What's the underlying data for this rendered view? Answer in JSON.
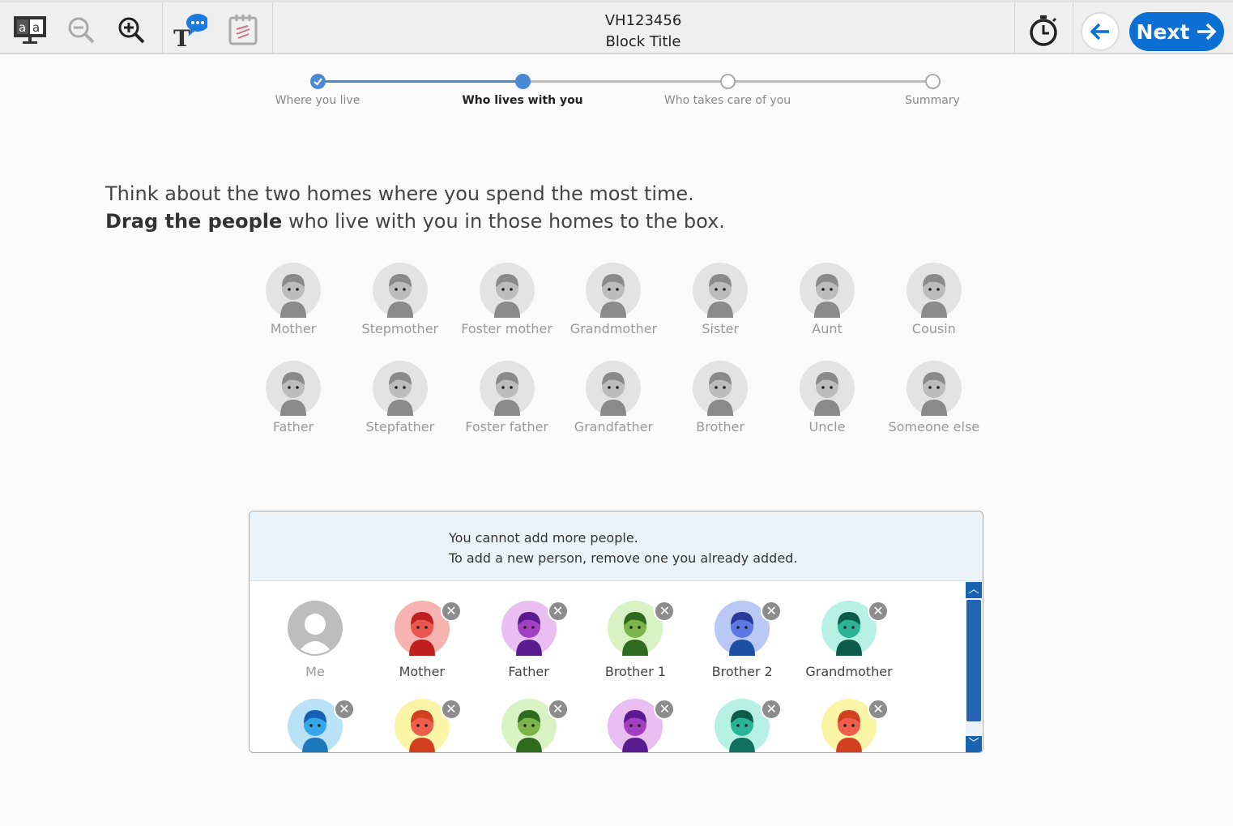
{
  "toolbar": {
    "title_line1": "VH123456",
    "title_line2": "Block Title",
    "next_label": "Next",
    "icons": [
      "text-to-speech-monitor-icon",
      "zoom-out-icon",
      "zoom-in-icon",
      "text-comment-icon",
      "notepad-icon",
      "timer-icon",
      "back-arrow-icon",
      "next-arrow-icon"
    ]
  },
  "stepper": {
    "steps": [
      {
        "label": "Where you live",
        "state": "done"
      },
      {
        "label": "Who lives with you",
        "state": "current"
      },
      {
        "label": "Who takes care of you",
        "state": "todo"
      },
      {
        "label": "Summary",
        "state": "todo"
      }
    ],
    "accent": "#4a89d4"
  },
  "instruction": {
    "line1": "Think about the two homes where you spend the most time.",
    "line2_bold": "Drag the people",
    "line2_rest": " who live with you in those homes to the box."
  },
  "people": [
    {
      "label": "Mother"
    },
    {
      "label": "Stepmother"
    },
    {
      "label": "Foster mother"
    },
    {
      "label": "Grandmother"
    },
    {
      "label": "Sister"
    },
    {
      "label": "Aunt"
    },
    {
      "label": "Cousin"
    },
    {
      "label": "Father"
    },
    {
      "label": "Stepfather"
    },
    {
      "label": "Foster father"
    },
    {
      "label": "Grandfather"
    },
    {
      "label": "Brother"
    },
    {
      "label": "Uncle"
    },
    {
      "label": "Someone else"
    }
  ],
  "box": {
    "message_line1": "You cannot add more people.",
    "message_line2": "To add a new person, remove one you already added.",
    "added": [
      {
        "label": "Me",
        "bg": "#ffffff",
        "skin": "#bdbdbd",
        "hair": "#bdbdbd",
        "shirt": "#bdbdbd",
        "removable": false
      },
      {
        "label": "Mother",
        "bg": "#f6b3b0",
        "skin": "#e8564f",
        "hair": "#c0201d",
        "shirt": "#c0201d",
        "removable": true
      },
      {
        "label": "Father",
        "bg": "#e9bff2",
        "skin": "#a33fc1",
        "hair": "#5a1b8f",
        "shirt": "#5a1b8f",
        "removable": true
      },
      {
        "label": "Brother 1",
        "bg": "#d8f2c4",
        "skin": "#7bb54a",
        "hair": "#2f6b1f",
        "shirt": "#2f6b1f",
        "removable": true
      },
      {
        "label": "Brother 2",
        "bg": "#b9c8f5",
        "skin": "#5b77e3",
        "hair": "#2a3a9a",
        "shirt": "#1d4fa3",
        "removable": true
      },
      {
        "label": "Grandmother",
        "bg": "#b7f1e3",
        "skin": "#2bb398",
        "hair": "#0d5b4b",
        "shirt": "#0d5b4b",
        "removable": true
      },
      {
        "label": "",
        "bg": "#b9e2f7",
        "skin": "#35a6e8",
        "hair": "#1760b3",
        "shirt": "#1c78b8",
        "removable": true
      },
      {
        "label": "",
        "bg": "#faf5a6",
        "skin": "#ef5d4d",
        "hair": "#d2401f",
        "shirt": "#d2401f",
        "removable": true
      },
      {
        "label": "",
        "bg": "#d8f2c4",
        "skin": "#7bb54a",
        "hair": "#2f6b1f",
        "shirt": "#2f6b1f",
        "removable": true
      },
      {
        "label": "",
        "bg": "#e9bff2",
        "skin": "#a33fc1",
        "hair": "#5a1b8f",
        "shirt": "#5a1b8f",
        "removable": true
      },
      {
        "label": "",
        "bg": "#b7f1e3",
        "skin": "#2bb398",
        "hair": "#0d5b4b",
        "shirt": "#117060",
        "removable": true
      },
      {
        "label": "",
        "bg": "#faf5a6",
        "skin": "#ef5d4d",
        "hair": "#d2401f",
        "shirt": "#d2401f",
        "removable": true
      }
    ]
  }
}
